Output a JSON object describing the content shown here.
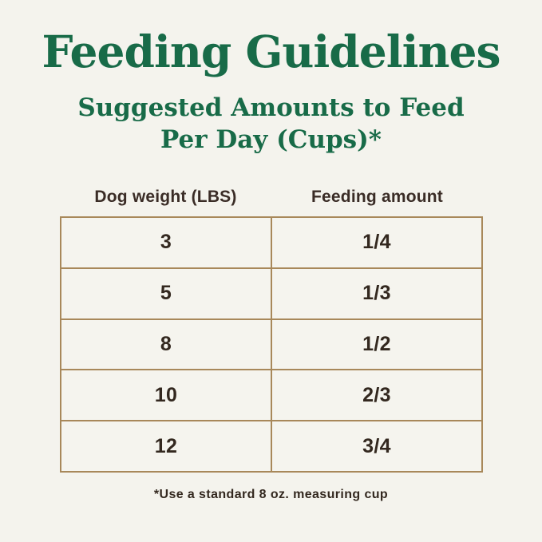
{
  "colors": {
    "background": "#f4f3ed",
    "title_green": "#186b48",
    "table_border_tan": "#a8885a",
    "text_brown": "#33281f"
  },
  "header": {
    "title": "Feeding Guidelines",
    "subtitle_line1": "Suggested Amounts to Feed",
    "subtitle_line2": "Per Day (Cups)*"
  },
  "table": {
    "columns": [
      "Dog weight (LBS)",
      "Feeding amount"
    ],
    "rows": [
      {
        "weight": "3",
        "amount": "1/4"
      },
      {
        "weight": "5",
        "amount": "1/3"
      },
      {
        "weight": "8",
        "amount": "1/2"
      },
      {
        "weight": "10",
        "amount": "2/3"
      },
      {
        "weight": "12",
        "amount": "3/4"
      }
    ]
  },
  "footnote": {
    "text": "*Use a standard 8 oz. measuring cup"
  },
  "chart_data": {
    "type": "table",
    "title": "Feeding Guidelines",
    "subtitle": "Suggested Amounts to Feed Per Day (Cups)*",
    "columns": [
      "Dog weight (LBS)",
      "Feeding amount"
    ],
    "rows": [
      [
        "3",
        "1/4"
      ],
      [
        "5",
        "1/3"
      ],
      [
        "8",
        "1/2"
      ],
      [
        "10",
        "2/3"
      ],
      [
        "12",
        "3/4"
      ]
    ],
    "footnote": "*Use a standard 8 oz. measuring cup",
    "layout_hints": {
      "columns_centered": true,
      "grid": "full borders, tan color",
      "units": "cups per day"
    }
  }
}
